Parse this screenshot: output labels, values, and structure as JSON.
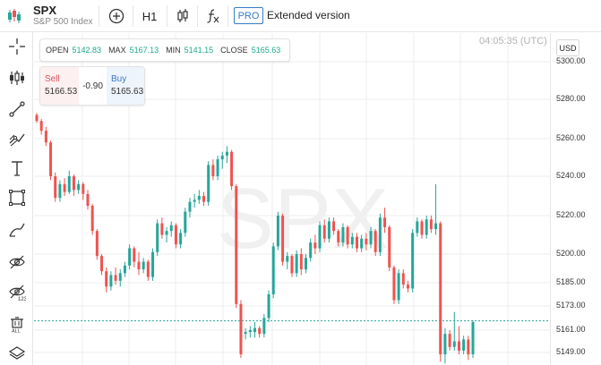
{
  "header": {
    "symbol": "SPX",
    "name": "S&P 500 Index",
    "timeframe": "H1",
    "pro_badge": "PRO",
    "extended_label": "Extended version"
  },
  "left_toolbar": {
    "tools": [
      "crosshair-icon",
      "indicators-icon",
      "trend-line-icon",
      "fib-icon",
      "text-icon",
      "rectangle-icon",
      "brush-icon",
      "hide-drawings-icon",
      "hide-indicators-icon",
      "delete-all-icon",
      "layers-icon"
    ]
  },
  "ohlc": {
    "open_label": "OPEN",
    "open_value": "5142.83",
    "max_label": "MAX",
    "max_value": "5167.13",
    "min_label": "MIN",
    "min_value": "5141.15",
    "close_label": "CLOSE",
    "close_value": "5165.63"
  },
  "trade": {
    "sell_label": "Sell",
    "sell_value": "5166.53",
    "spread": "-0.90",
    "buy_label": "Buy",
    "buy_value": "5165.63"
  },
  "time_readout": "04:05:35 (UTC)",
  "currency": "USD",
  "watermark": "SPX",
  "colors": {
    "up": "#26a69a",
    "down": "#ef5350",
    "grid": "#eeeeee",
    "current_line": "#26a69a"
  },
  "chart_data": {
    "type": "candlestick",
    "y_ticks": [
      "5300.00",
      "5280.00",
      "5260.00",
      "5240.00",
      "5220.00",
      "5200.00",
      "5185.00",
      "5173.00",
      "5161.00",
      "5149.00"
    ],
    "current_price": 5165.63,
    "candles": [
      [
        5272,
        5273,
        5268,
        5269
      ],
      [
        5269,
        5270,
        5262,
        5264
      ],
      [
        5264,
        5266,
        5256,
        5258
      ],
      [
        5258,
        5259,
        5238,
        5240
      ],
      [
        5240,
        5242,
        5227,
        5229
      ],
      [
        5229,
        5238,
        5227,
        5236
      ],
      [
        5236,
        5239,
        5230,
        5232
      ],
      [
        5232,
        5243,
        5231,
        5240
      ],
      [
        5240,
        5241,
        5230,
        5233
      ],
      [
        5233,
        5238,
        5231,
        5236
      ],
      [
        5236,
        5237,
        5228,
        5231
      ],
      [
        5231,
        5233,
        5223,
        5225
      ],
      [
        5225,
        5226,
        5210,
        5212
      ],
      [
        5212,
        5213,
        5197,
        5199
      ],
      [
        5199,
        5200,
        5189,
        5191
      ],
      [
        5191,
        5193,
        5180,
        5183
      ],
      [
        5183,
        5191,
        5181,
        5189
      ],
      [
        5189,
        5193,
        5184,
        5186
      ],
      [
        5186,
        5192,
        5183,
        5190
      ],
      [
        5190,
        5196,
        5188,
        5194
      ],
      [
        5194,
        5205,
        5192,
        5203
      ],
      [
        5203,
        5204,
        5193,
        5196
      ],
      [
        5196,
        5201,
        5189,
        5192
      ],
      [
        5192,
        5198,
        5190,
        5196
      ],
      [
        5196,
        5197,
        5186,
        5188
      ],
      [
        5188,
        5203,
        5186,
        5201
      ],
      [
        5201,
        5218,
        5199,
        5216
      ],
      [
        5216,
        5219,
        5208,
        5210
      ],
      [
        5210,
        5214,
        5206,
        5212
      ],
      [
        5212,
        5217,
        5209,
        5215
      ],
      [
        5215,
        5216,
        5203,
        5205
      ],
      [
        5205,
        5213,
        5203,
        5211
      ],
      [
        5211,
        5224,
        5209,
        5222
      ],
      [
        5222,
        5229,
        5219,
        5227
      ],
      [
        5227,
        5231,
        5224,
        5228
      ],
      [
        5228,
        5233,
        5226,
        5230
      ],
      [
        5230,
        5232,
        5225,
        5227
      ],
      [
        5227,
        5248,
        5225,
        5246
      ],
      [
        5246,
        5249,
        5238,
        5240
      ],
      [
        5240,
        5251,
        5238,
        5249
      ],
      [
        5249,
        5253,
        5244,
        5251
      ],
      [
        5251,
        5256,
        5247,
        5253
      ],
      [
        5253,
        5254,
        5233,
        5235
      ],
      [
        5235,
        5236,
        5172,
        5174
      ],
      [
        5174,
        5176,
        5146,
        5148
      ],
      [
        5159,
        5162,
        5156,
        5160
      ],
      [
        5160,
        5163,
        5157,
        5161
      ],
      [
        5160,
        5165,
        5157,
        5162
      ],
      [
        5162,
        5163,
        5157,
        5159
      ],
      [
        5159,
        5169,
        5157,
        5167
      ],
      [
        5167,
        5181,
        5165,
        5179
      ],
      [
        5179,
        5206,
        5177,
        5204
      ],
      [
        5204,
        5222,
        5202,
        5220
      ],
      [
        5220,
        5221,
        5194,
        5196
      ],
      [
        5196,
        5201,
        5192,
        5199
      ],
      [
        5199,
        5200,
        5188,
        5190
      ],
      [
        5190,
        5202,
        5188,
        5200
      ],
      [
        5200,
        5203,
        5189,
        5192
      ],
      [
        5192,
        5200,
        5190,
        5198
      ],
      [
        5198,
        5208,
        5196,
        5206
      ],
      [
        5206,
        5210,
        5200,
        5203
      ],
      [
        5203,
        5217,
        5201,
        5215
      ],
      [
        5215,
        5218,
        5206,
        5208
      ],
      [
        5208,
        5219,
        5206,
        5217
      ],
      [
        5217,
        5219,
        5210,
        5212
      ],
      [
        5212,
        5213,
        5204,
        5206
      ],
      [
        5206,
        5216,
        5204,
        5214
      ],
      [
        5214,
        5215,
        5203,
        5205
      ],
      [
        5205,
        5211,
        5203,
        5209
      ],
      [
        5209,
        5211,
        5201,
        5203
      ],
      [
        5203,
        5210,
        5201,
        5208
      ],
      [
        5208,
        5211,
        5202,
        5205
      ],
      [
        5205,
        5214,
        5203,
        5212
      ],
      [
        5212,
        5213,
        5199,
        5201
      ],
      [
        5201,
        5221,
        5199,
        5219
      ],
      [
        5219,
        5224,
        5211,
        5214
      ],
      [
        5214,
        5215,
        5191,
        5193
      ],
      [
        5193,
        5194,
        5174,
        5176
      ],
      [
        5176,
        5192,
        5174,
        5190
      ],
      [
        5190,
        5192,
        5182,
        5184
      ],
      [
        5184,
        5186,
        5180,
        5182
      ],
      [
        5182,
        5213,
        5180,
        5211
      ],
      [
        5211,
        5219,
        5209,
        5217
      ],
      [
        5217,
        5218,
        5208,
        5210
      ],
      [
        5210,
        5220,
        5208,
        5218
      ],
      [
        5218,
        5220,
        5211,
        5213
      ],
      [
        5213,
        5236,
        5210,
        5216
      ],
      [
        5216,
        5217,
        5144,
        5148
      ],
      [
        5148,
        5162,
        5143,
        5159
      ],
      [
        5159,
        5161,
        5150,
        5152
      ],
      [
        5152,
        5170,
        5150,
        5155
      ],
      [
        5155,
        5163,
        5148,
        5150
      ],
      [
        5150,
        5158,
        5148,
        5156
      ],
      [
        5156,
        5158,
        5145,
        5148
      ],
      [
        5148,
        5166,
        5146,
        5165
      ]
    ]
  }
}
